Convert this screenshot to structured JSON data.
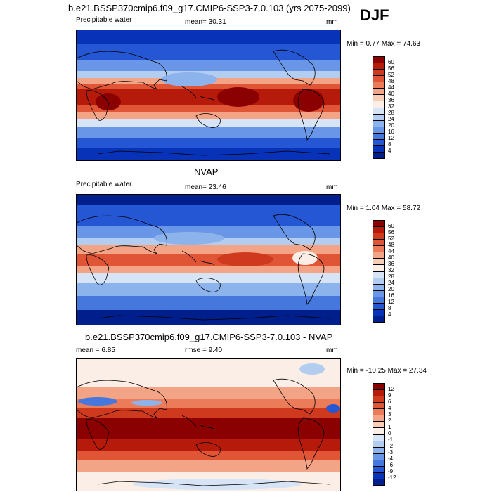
{
  "season": "DJF",
  "panels": [
    {
      "title": "b.e21.BSSP370cmip6.f09_g17.CMIP6-SSP3-7.0.103 (yrs 2075-2099)",
      "variable": "Precipitable water",
      "stat": "mean=  30.31",
      "units": "mm",
      "minmax": "Min =   0.77 Max =  74.63",
      "colorbar_labels": [
        "60",
        "56",
        "52",
        "48",
        "44",
        "40",
        "36",
        "32",
        "28",
        "24",
        "20",
        "16",
        "12",
        "8",
        "4"
      ],
      "colorbar_colors": [
        "#8b0000",
        "#b51a0a",
        "#cf3a1e",
        "#e05536",
        "#ec7b5a",
        "#f4a486",
        "#f8cdb6",
        "#fbeee6",
        "#d6e4f5",
        "#b2cdf0",
        "#8db3ec",
        "#6996e6",
        "#4677dd",
        "#2556d3",
        "#0833b8",
        "#001f8c"
      ]
    },
    {
      "title": "NVAP",
      "variable": "Precipitable water",
      "stat": "mean=  23.46",
      "units": "mm",
      "minmax": "Min =   1.04 Max =  58.72",
      "colorbar_labels": [
        "60",
        "56",
        "52",
        "48",
        "44",
        "40",
        "36",
        "32",
        "28",
        "24",
        "20",
        "16",
        "12",
        "8",
        "4"
      ],
      "colorbar_colors": [
        "#8b0000",
        "#b51a0a",
        "#cf3a1e",
        "#e05536",
        "#ec7b5a",
        "#f4a486",
        "#f8cdb6",
        "#fbeee6",
        "#d6e4f5",
        "#b2cdf0",
        "#8db3ec",
        "#6996e6",
        "#4677dd",
        "#2556d3",
        "#0833b8",
        "#001f8c"
      ]
    },
    {
      "title": "b.e21.BSSP370cmip6.f09_g17.CMIP6-SSP3-7.0.103 - NVAP",
      "stat_left": "mean =   6.85",
      "stat_mid": "rmse =   9.40",
      "units": "mm",
      "minmax": "Min = -10.25 Max =  27.34",
      "colorbar_labels": [
        "12",
        "9",
        "6",
        "4",
        "3",
        "2",
        "1",
        "0",
        "-1",
        "-2",
        "-3",
        "-4",
        "-6",
        "-9",
        "-12"
      ],
      "colorbar_colors": [
        "#8b0000",
        "#b51a0a",
        "#cf3a1e",
        "#e05536",
        "#ec7b5a",
        "#f4a486",
        "#f8cdb6",
        "#fbeee6",
        "#d6e4f5",
        "#b2cdf0",
        "#8db3ec",
        "#6996e6",
        "#4677dd",
        "#2556d3",
        "#0833b8",
        "#001f8c"
      ]
    }
  ]
}
